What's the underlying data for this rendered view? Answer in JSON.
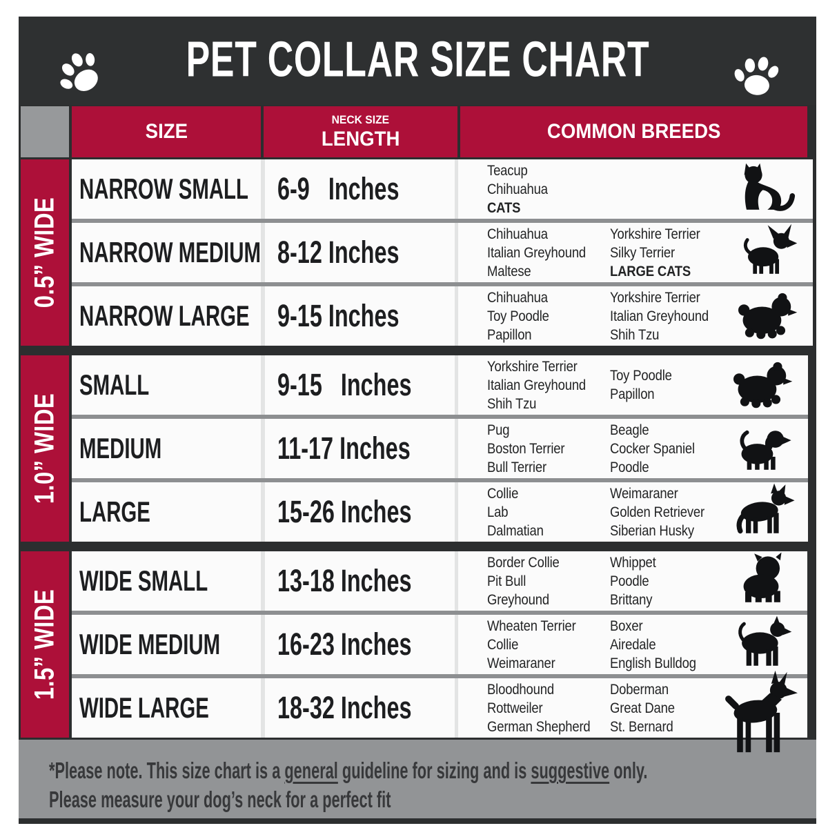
{
  "header": {
    "title": "PET COLLAR SIZE CHART",
    "left_icon": "paw-icon",
    "right_icon": "paw-icon"
  },
  "columns": {
    "size": "SIZE",
    "length_sub": "NECK SIZE",
    "length": "LENGTH",
    "breeds": "COMMON BREEDS"
  },
  "sections": [
    {
      "width_label": "0.5” WIDE",
      "rows": [
        {
          "size": "NARROW SMALL",
          "length": "6-9   Inches",
          "icon": "cat-icon",
          "breeds": [
            [
              {
                "t": "Teacup"
              },
              {
                "t": "Chihuahua"
              },
              {
                "t": "CATS",
                "bold": true
              }
            ],
            []
          ]
        },
        {
          "size": "NARROW MEDIUM",
          "length": "8-12 Inches",
          "icon": "chihuahua-icon",
          "breeds": [
            [
              {
                "t": "Chihuahua"
              },
              {
                "t": "Italian Greyhound"
              },
              {
                "t": "Maltese"
              }
            ],
            [
              {
                "t": "Yorkshire Terrier"
              },
              {
                "t": "Silky Terrier"
              },
              {
                "t": "LARGE CATS",
                "bold": true
              }
            ]
          ]
        },
        {
          "size": "NARROW LARGE",
          "length": "9-15 Inches",
          "icon": "shih-tzu-icon",
          "breeds": [
            [
              {
                "t": "Chihuahua"
              },
              {
                "t": "Toy Poodle"
              },
              {
                "t": "Papillon"
              }
            ],
            [
              {
                "t": "Yorkshire Terrier"
              },
              {
                "t": "Italian Greyhound"
              },
              {
                "t": "Shih Tzu"
              }
            ]
          ]
        }
      ]
    },
    {
      "width_label": "1.0” WIDE",
      "rows": [
        {
          "size": "SMALL",
          "length": "9-15   Inches",
          "icon": "shih-tzu-icon",
          "breeds": [
            [
              {
                "t": "Yorkshire Terrier"
              },
              {
                "t": "Italian Greyhound"
              },
              {
                "t": "Shih Tzu"
              }
            ],
            [
              {
                "t": "Toy Poodle"
              },
              {
                "t": "Papillon"
              }
            ]
          ]
        },
        {
          "size": "MEDIUM",
          "length": "11-17 Inches",
          "icon": "puppy-icon",
          "breeds": [
            [
              {
                "t": "Pug"
              },
              {
                "t": "Boston Terrier"
              },
              {
                "t": "Bull Terrier"
              }
            ],
            [
              {
                "t": "Beagle"
              },
              {
                "t": "Cocker Spaniel"
              },
              {
                "t": "Poodle"
              }
            ]
          ]
        },
        {
          "size": "LARGE",
          "length": "15-26 Inches",
          "icon": "shepherd-dog-icon",
          "breeds": [
            [
              {
                "t": "Collie"
              },
              {
                "t": "Lab"
              },
              {
                "t": "Dalmatian"
              }
            ],
            [
              {
                "t": "Weimaraner"
              },
              {
                "t": "Golden Retriever"
              },
              {
                "t": "Siberian Husky"
              }
            ]
          ]
        }
      ]
    },
    {
      "width_label": "1.5” WIDE",
      "rows": [
        {
          "size": "WIDE SMALL",
          "length": "13-18 Inches",
          "icon": "bulldog-icon",
          "breeds": [
            [
              {
                "t": "Border Collie"
              },
              {
                "t": "Pit Bull"
              },
              {
                "t": "Greyhound"
              }
            ],
            [
              {
                "t": "Whippet"
              },
              {
                "t": "Poodle"
              },
              {
                "t": "Brittany"
              }
            ]
          ]
        },
        {
          "size": "WIDE MEDIUM",
          "length": "16-23 Inches",
          "icon": "pit-bull-icon",
          "breeds": [
            [
              {
                "t": "Wheaten Terrier"
              },
              {
                "t": "Collie"
              },
              {
                "t": "Weimaraner"
              }
            ],
            [
              {
                "t": "Boxer"
              },
              {
                "t": "Airedale"
              },
              {
                "t": "English Bulldog"
              }
            ]
          ]
        },
        {
          "size": "WIDE LARGE",
          "length": "18-32 Inches",
          "icon": "doberman-icon",
          "breeds": [
            [
              {
                "t": "Bloodhound"
              },
              {
                "t": "Rottweiler"
              },
              {
                "t": "German Shepherd"
              }
            ],
            [
              {
                "t": "Doberman"
              },
              {
                "t": "Great Dane"
              },
              {
                "t": "St. Bernard"
              }
            ]
          ]
        }
      ]
    }
  ],
  "footer": {
    "note1_pre": "*Please note. This size chart is a ",
    "note1_underline1": "general",
    "note1_mid": " guideline for sizing and is ",
    "note1_underline2": "suggestive",
    "note1_post": " only.",
    "note2": "Please measure your dog’s neck for a perfect fit"
  },
  "colors": {
    "accent_red": "#ad1039",
    "frame_dark": "#2e3031",
    "corner_gray": "#97999b",
    "footer_gray": "#929496",
    "row_bg": "#fbfbfb",
    "row_divider": "#8d8f91"
  }
}
